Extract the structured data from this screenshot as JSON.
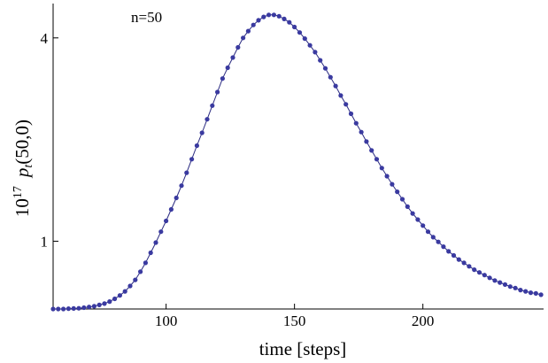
{
  "chart_data": {
    "type": "line",
    "annotation": "n=50",
    "xlabel": "time [steps]",
    "ylabel": {
      "prefix": "10",
      "exponent": "17",
      "function": "p",
      "subscript": "t",
      "argument": "(50,0)"
    },
    "xlim": [
      56,
      247
    ],
    "ylim": [
      0,
      4.35
    ],
    "x_ticks": [
      {
        "value": 100,
        "label": "100"
      },
      {
        "value": 150,
        "label": "150"
      },
      {
        "value": 200,
        "label": "200"
      }
    ],
    "y_ticks": [
      {
        "value": 1,
        "label": "1"
      },
      {
        "value": 4,
        "label": "4"
      }
    ],
    "grid": false,
    "marker_color": "#3a3aa0",
    "line_color": "#2a2a80",
    "series": [
      {
        "x": [
          56,
          58,
          60,
          62,
          64,
          66,
          68,
          70,
          72,
          74,
          76,
          78,
          80,
          82,
          84,
          86,
          88,
          90,
          92,
          94,
          96,
          98,
          100,
          102,
          104,
          106,
          108,
          110,
          112,
          114,
          116,
          118,
          120,
          122,
          124,
          126,
          128,
          130,
          132,
          134,
          136,
          138,
          140,
          142,
          144,
          146,
          148,
          150,
          152,
          154,
          156,
          158,
          160,
          162,
          164,
          166,
          168,
          170,
          172,
          174,
          176,
          178,
          180,
          182,
          184,
          186,
          188,
          190,
          192,
          194,
          196,
          198,
          200,
          202,
          204,
          206,
          208,
          210,
          212,
          214,
          216,
          218,
          220,
          222,
          224,
          226,
          228,
          230,
          232,
          234,
          236,
          238,
          240,
          242,
          244,
          246
        ],
        "y": [
          0.0,
          0.0,
          0.0,
          0.005,
          0.008,
          0.011,
          0.02,
          0.03,
          0.04,
          0.06,
          0.08,
          0.11,
          0.15,
          0.2,
          0.26,
          0.34,
          0.43,
          0.55,
          0.68,
          0.83,
          0.98,
          1.14,
          1.3,
          1.47,
          1.64,
          1.82,
          2.01,
          2.21,
          2.41,
          2.6,
          2.8,
          3.0,
          3.2,
          3.4,
          3.56,
          3.71,
          3.86,
          4.0,
          4.1,
          4.19,
          4.26,
          4.31,
          4.34,
          4.34,
          4.32,
          4.28,
          4.23,
          4.16,
          4.08,
          3.99,
          3.89,
          3.79,
          3.67,
          3.55,
          3.42,
          3.29,
          3.15,
          3.02,
          2.88,
          2.74,
          2.61,
          2.47,
          2.34,
          2.21,
          2.08,
          1.96,
          1.84,
          1.73,
          1.62,
          1.51,
          1.41,
          1.32,
          1.23,
          1.14,
          1.06,
          0.99,
          0.92,
          0.85,
          0.79,
          0.73,
          0.68,
          0.63,
          0.58,
          0.54,
          0.5,
          0.46,
          0.42,
          0.39,
          0.36,
          0.33,
          0.31,
          0.28,
          0.26,
          0.24,
          0.23,
          0.21
        ]
      }
    ]
  }
}
